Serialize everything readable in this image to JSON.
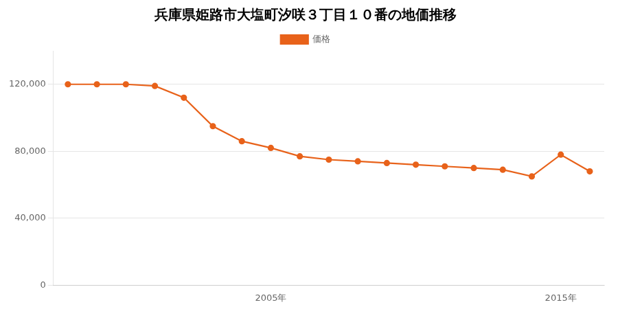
{
  "chart_data": {
    "type": "line",
    "title": "兵庫県姫路市大塩町汐咲３丁目１０番の地価推移",
    "x": [
      1998,
      1999,
      2000,
      2001,
      2002,
      2003,
      2004,
      2005,
      2006,
      2007,
      2008,
      2009,
      2010,
      2011,
      2012,
      2013,
      2014,
      2015,
      2016
    ],
    "series": [
      {
        "name": "価格",
        "color": "#E8621A",
        "marker": "circle",
        "values": [
          120000,
          120000,
          120000,
          119000,
          112000,
          95000,
          86000,
          82000,
          77000,
          75000,
          74000,
          73000,
          72000,
          71000,
          70000,
          69000,
          65000,
          78000,
          68000
        ]
      }
    ],
    "xlim": [
      1997.5,
      2016.5
    ],
    "xticks": [
      {
        "value": 2005,
        "label": "2005年"
      },
      {
        "value": 2015,
        "label": "2015年"
      }
    ],
    "ylim": [
      0,
      140000
    ],
    "yticks": [
      0,
      {
        "value": 40000,
        "label": "40,000"
      },
      {
        "value": 80000,
        "label": "80,000"
      },
      {
        "value": 120000,
        "label": "120,000"
      }
    ],
    "grid": "y",
    "legend": "top"
  }
}
